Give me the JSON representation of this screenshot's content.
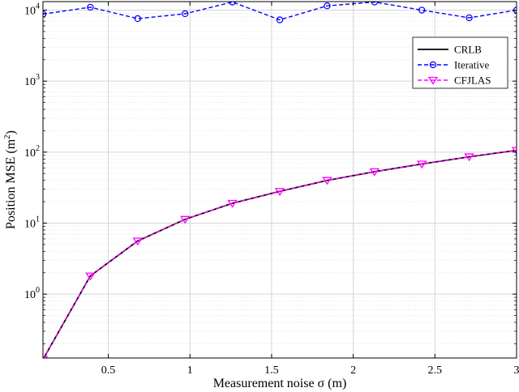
{
  "chart_data": {
    "type": "line",
    "xlabel": "Measurement noise σ (m)",
    "ylabel": "Position MSE (m²)",
    "xlim": [
      0.1,
      3
    ],
    "ylim_log10": [
      -0.9,
      4.12
    ],
    "y_scale": "log",
    "grid": true,
    "legend_position": "top-right",
    "x_ticks": [
      0.5,
      1,
      1.5,
      2,
      2.5,
      3
    ],
    "x_tick_labels": [
      "0.5",
      "1",
      "1.5",
      "2",
      "2.5",
      "3"
    ],
    "y_tick_exponents": [
      0,
      1,
      2,
      3,
      4
    ],
    "x": [
      0.1,
      0.39,
      0.68,
      0.97,
      1.26,
      1.55,
      1.84,
      2.13,
      2.42,
      2.71,
      3.0
    ],
    "series": [
      {
        "name": "CRLB",
        "color": "#000000",
        "line": "solid",
        "marker": "none",
        "values": [
          0.12,
          1.8,
          5.6,
          11.3,
          19,
          28,
          40,
          53,
          68,
          86,
          106
        ]
      },
      {
        "name": "Iterative",
        "color": "#0000ff",
        "line": "dashed",
        "marker": "circle",
        "values": [
          8800,
          11000,
          7600,
          8900,
          13000,
          7300,
          11500,
          13000,
          10000,
          7800,
          10000
        ]
      },
      {
        "name": "CFJLAS",
        "color": "#ff00ff",
        "line": "dashed",
        "marker": "triangle-down",
        "values": [
          0.12,
          1.8,
          5.6,
          11.3,
          19,
          28,
          40,
          53,
          68,
          86,
          106
        ]
      }
    ]
  }
}
